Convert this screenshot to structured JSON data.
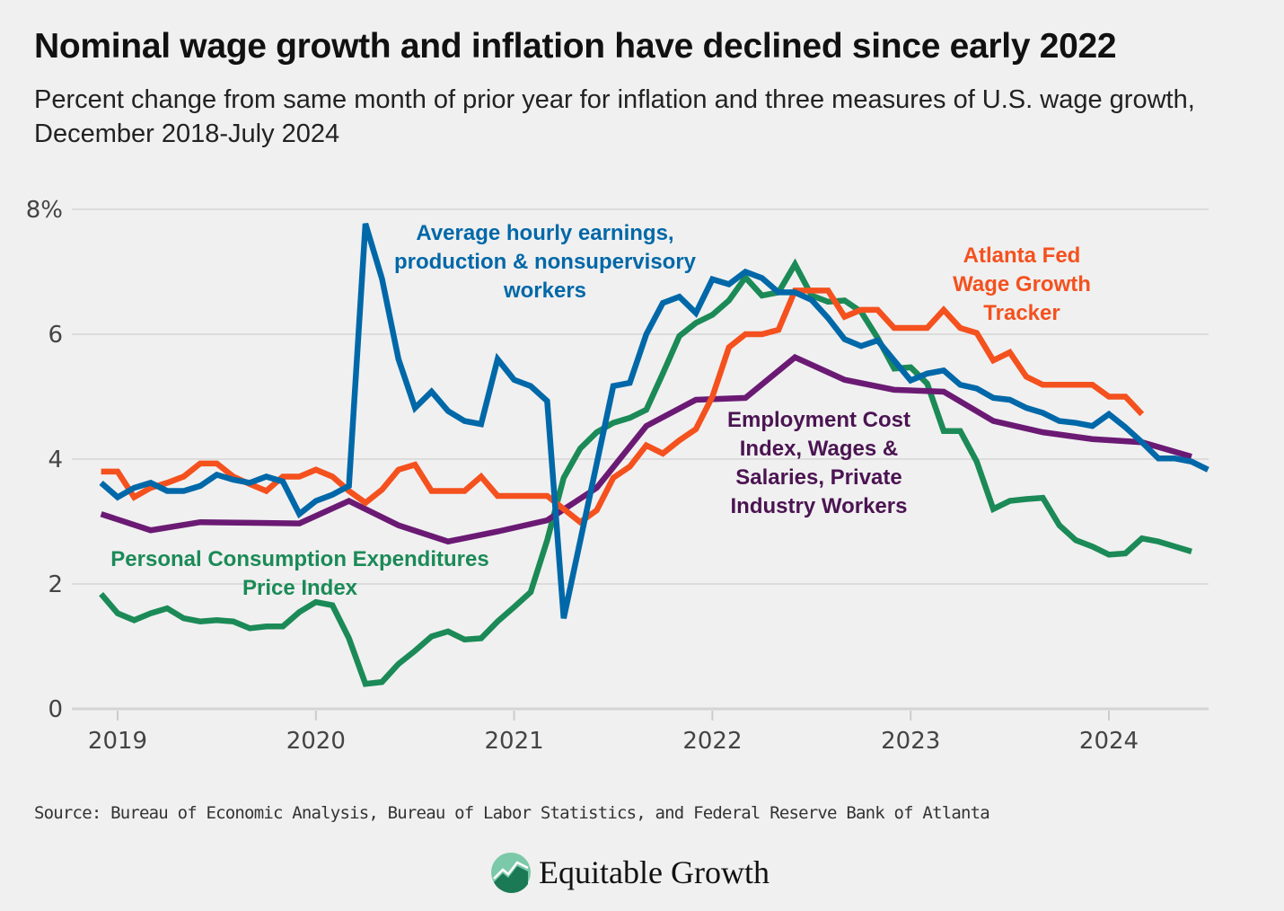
{
  "header": {
    "title": "Nominal wage growth and inflation have declined since early 2022",
    "subtitle": "Percent change from same month of prior year for inflation and three measures of U.S. wage growth, December 2018-July 2024"
  },
  "footer": {
    "source": "Source: Bureau of Economic Analysis, Bureau of Labor Statistics, and Federal Reserve Bank of Atlanta",
    "logo_text": "Equitable Growth"
  },
  "chart_data": {
    "type": "line",
    "title": "Nominal wage growth and inflation have declined since early 2022",
    "xlabel": "",
    "ylabel": "",
    "ylim": [
      0,
      8
    ],
    "yticks": [
      0,
      2,
      4,
      6,
      8
    ],
    "ytick_labels": [
      "0",
      "2",
      "4",
      "6",
      "8%"
    ],
    "xticks": [
      "2019",
      "2020",
      "2021",
      "2022",
      "2023",
      "2024"
    ],
    "grid": "horizontal",
    "legend": "inline labels",
    "x": [
      "2018-12",
      "2019-01",
      "2019-02",
      "2019-03",
      "2019-04",
      "2019-05",
      "2019-06",
      "2019-07",
      "2019-08",
      "2019-09",
      "2019-10",
      "2019-11",
      "2019-12",
      "2020-01",
      "2020-02",
      "2020-03",
      "2020-04",
      "2020-05",
      "2020-06",
      "2020-07",
      "2020-08",
      "2020-09",
      "2020-10",
      "2020-11",
      "2020-12",
      "2021-01",
      "2021-02",
      "2021-03",
      "2021-04",
      "2021-05",
      "2021-06",
      "2021-07",
      "2021-08",
      "2021-09",
      "2021-10",
      "2021-11",
      "2021-12",
      "2022-01",
      "2022-02",
      "2022-03",
      "2022-04",
      "2022-05",
      "2022-06",
      "2022-07",
      "2022-08",
      "2022-09",
      "2022-10",
      "2022-11",
      "2022-12",
      "2023-01",
      "2023-02",
      "2023-03",
      "2023-04",
      "2023-05",
      "2023-06",
      "2023-07",
      "2023-08",
      "2023-09",
      "2023-10",
      "2023-11",
      "2023-12",
      "2024-01",
      "2024-02",
      "2024-03",
      "2024-04",
      "2024-05",
      "2024-06",
      "2024-07"
    ],
    "series": [
      {
        "name": "Personal Consumption Expenditures Price Index",
        "label_lines": [
          "Personal Consumption Expenditures",
          "Price Index"
        ],
        "color": "#1b8a57",
        "values": [
          1.84,
          1.53,
          1.42,
          1.53,
          1.61,
          1.45,
          1.4,
          1.42,
          1.4,
          1.29,
          1.32,
          1.32,
          1.55,
          1.71,
          1.66,
          1.13,
          0.4,
          0.43,
          0.72,
          0.93,
          1.16,
          1.24,
          1.11,
          1.13,
          1.4,
          1.63,
          1.87,
          2.7,
          3.7,
          4.17,
          4.43,
          4.58,
          4.66,
          4.79,
          5.37,
          5.97,
          6.18,
          6.31,
          6.54,
          6.91,
          6.62,
          6.67,
          7.12,
          6.62,
          6.52,
          6.54,
          6.36,
          5.94,
          5.45,
          5.47,
          5.21,
          4.45,
          4.45,
          3.96,
          3.2,
          3.33,
          3.36,
          3.38,
          2.94,
          2.7,
          2.6,
          2.47,
          2.49,
          2.73,
          2.68,
          2.6,
          2.52,
          null
        ]
      },
      {
        "name": "Employment Cost Index, Wages & Salaries, Private Industry Workers",
        "label_lines": [
          "Employment Cost",
          "Index, Wages &",
          "Salaries, Private",
          "Industry Workers"
        ],
        "color": "#6b1a74",
        "label_color": "#4b1452",
        "x": [
          "2018-12",
          "2019-03",
          "2019-06",
          "2019-09",
          "2019-12",
          "2020-03",
          "2020-06",
          "2020-09",
          "2020-12",
          "2021-03",
          "2021-06",
          "2021-09",
          "2021-12",
          "2022-03",
          "2022-06",
          "2022-09",
          "2022-12",
          "2023-03",
          "2023-06",
          "2023-09",
          "2023-12",
          "2024-03",
          "2024-06"
        ],
        "values": [
          3.12,
          2.86,
          2.99,
          2.98,
          2.97,
          3.33,
          2.94,
          2.68,
          2.84,
          3.02,
          3.54,
          4.53,
          4.95,
          4.98,
          5.63,
          5.27,
          5.11,
          5.08,
          4.61,
          4.43,
          4.32,
          4.27,
          4.04
        ]
      },
      {
        "name": "Atlanta Fed Wage Growth Tracker",
        "label_lines": [
          "Atlanta Fed",
          "Wage Growth",
          "Tracker"
        ],
        "color": "#f4511e",
        "values": [
          3.8,
          3.8,
          3.39,
          3.54,
          3.62,
          3.72,
          3.93,
          3.93,
          3.72,
          3.6,
          3.49,
          3.72,
          3.72,
          3.83,
          3.72,
          3.49,
          3.3,
          3.51,
          3.83,
          3.91,
          3.49,
          3.49,
          3.49,
          3.72,
          3.41,
          3.41,
          3.41,
          3.41,
          3.2,
          2.99,
          3.18,
          3.7,
          3.88,
          4.22,
          4.09,
          4.3,
          4.48,
          5.0,
          5.79,
          6.0,
          6.0,
          6.07,
          6.7,
          6.7,
          6.7,
          6.28,
          6.39,
          6.39,
          6.1,
          6.1,
          6.1,
          6.39,
          6.1,
          6.02,
          5.58,
          5.71,
          5.32,
          5.19,
          5.19,
          5.19,
          5.19,
          5.0,
          5.0,
          4.72,
          null,
          null,
          null,
          null
        ]
      },
      {
        "name": "Average hourly earnings, production & nonsupervisory workers",
        "label_lines": [
          "Average hourly earnings,",
          "production & nonsupervisory",
          "workers"
        ],
        "color": "#0068a8",
        "values": [
          3.62,
          3.39,
          3.54,
          3.62,
          3.49,
          3.49,
          3.57,
          3.75,
          3.67,
          3.62,
          3.72,
          3.64,
          3.12,
          3.33,
          3.43,
          3.57,
          7.77,
          6.89,
          5.6,
          4.82,
          5.08,
          4.77,
          4.61,
          4.56,
          5.6,
          5.27,
          5.17,
          4.93,
          1.45,
          2.69,
          3.93,
          5.17,
          5.22,
          6.0,
          6.5,
          6.6,
          6.34,
          6.88,
          6.8,
          7.0,
          6.9,
          6.67,
          6.67,
          6.55,
          6.26,
          5.92,
          5.81,
          5.9,
          5.58,
          5.26,
          5.37,
          5.42,
          5.19,
          5.13,
          4.98,
          4.95,
          4.82,
          4.74,
          4.61,
          4.58,
          4.53,
          4.72,
          4.51,
          4.27,
          4.01,
          4.01,
          3.96,
          3.83
        ]
      }
    ]
  }
}
